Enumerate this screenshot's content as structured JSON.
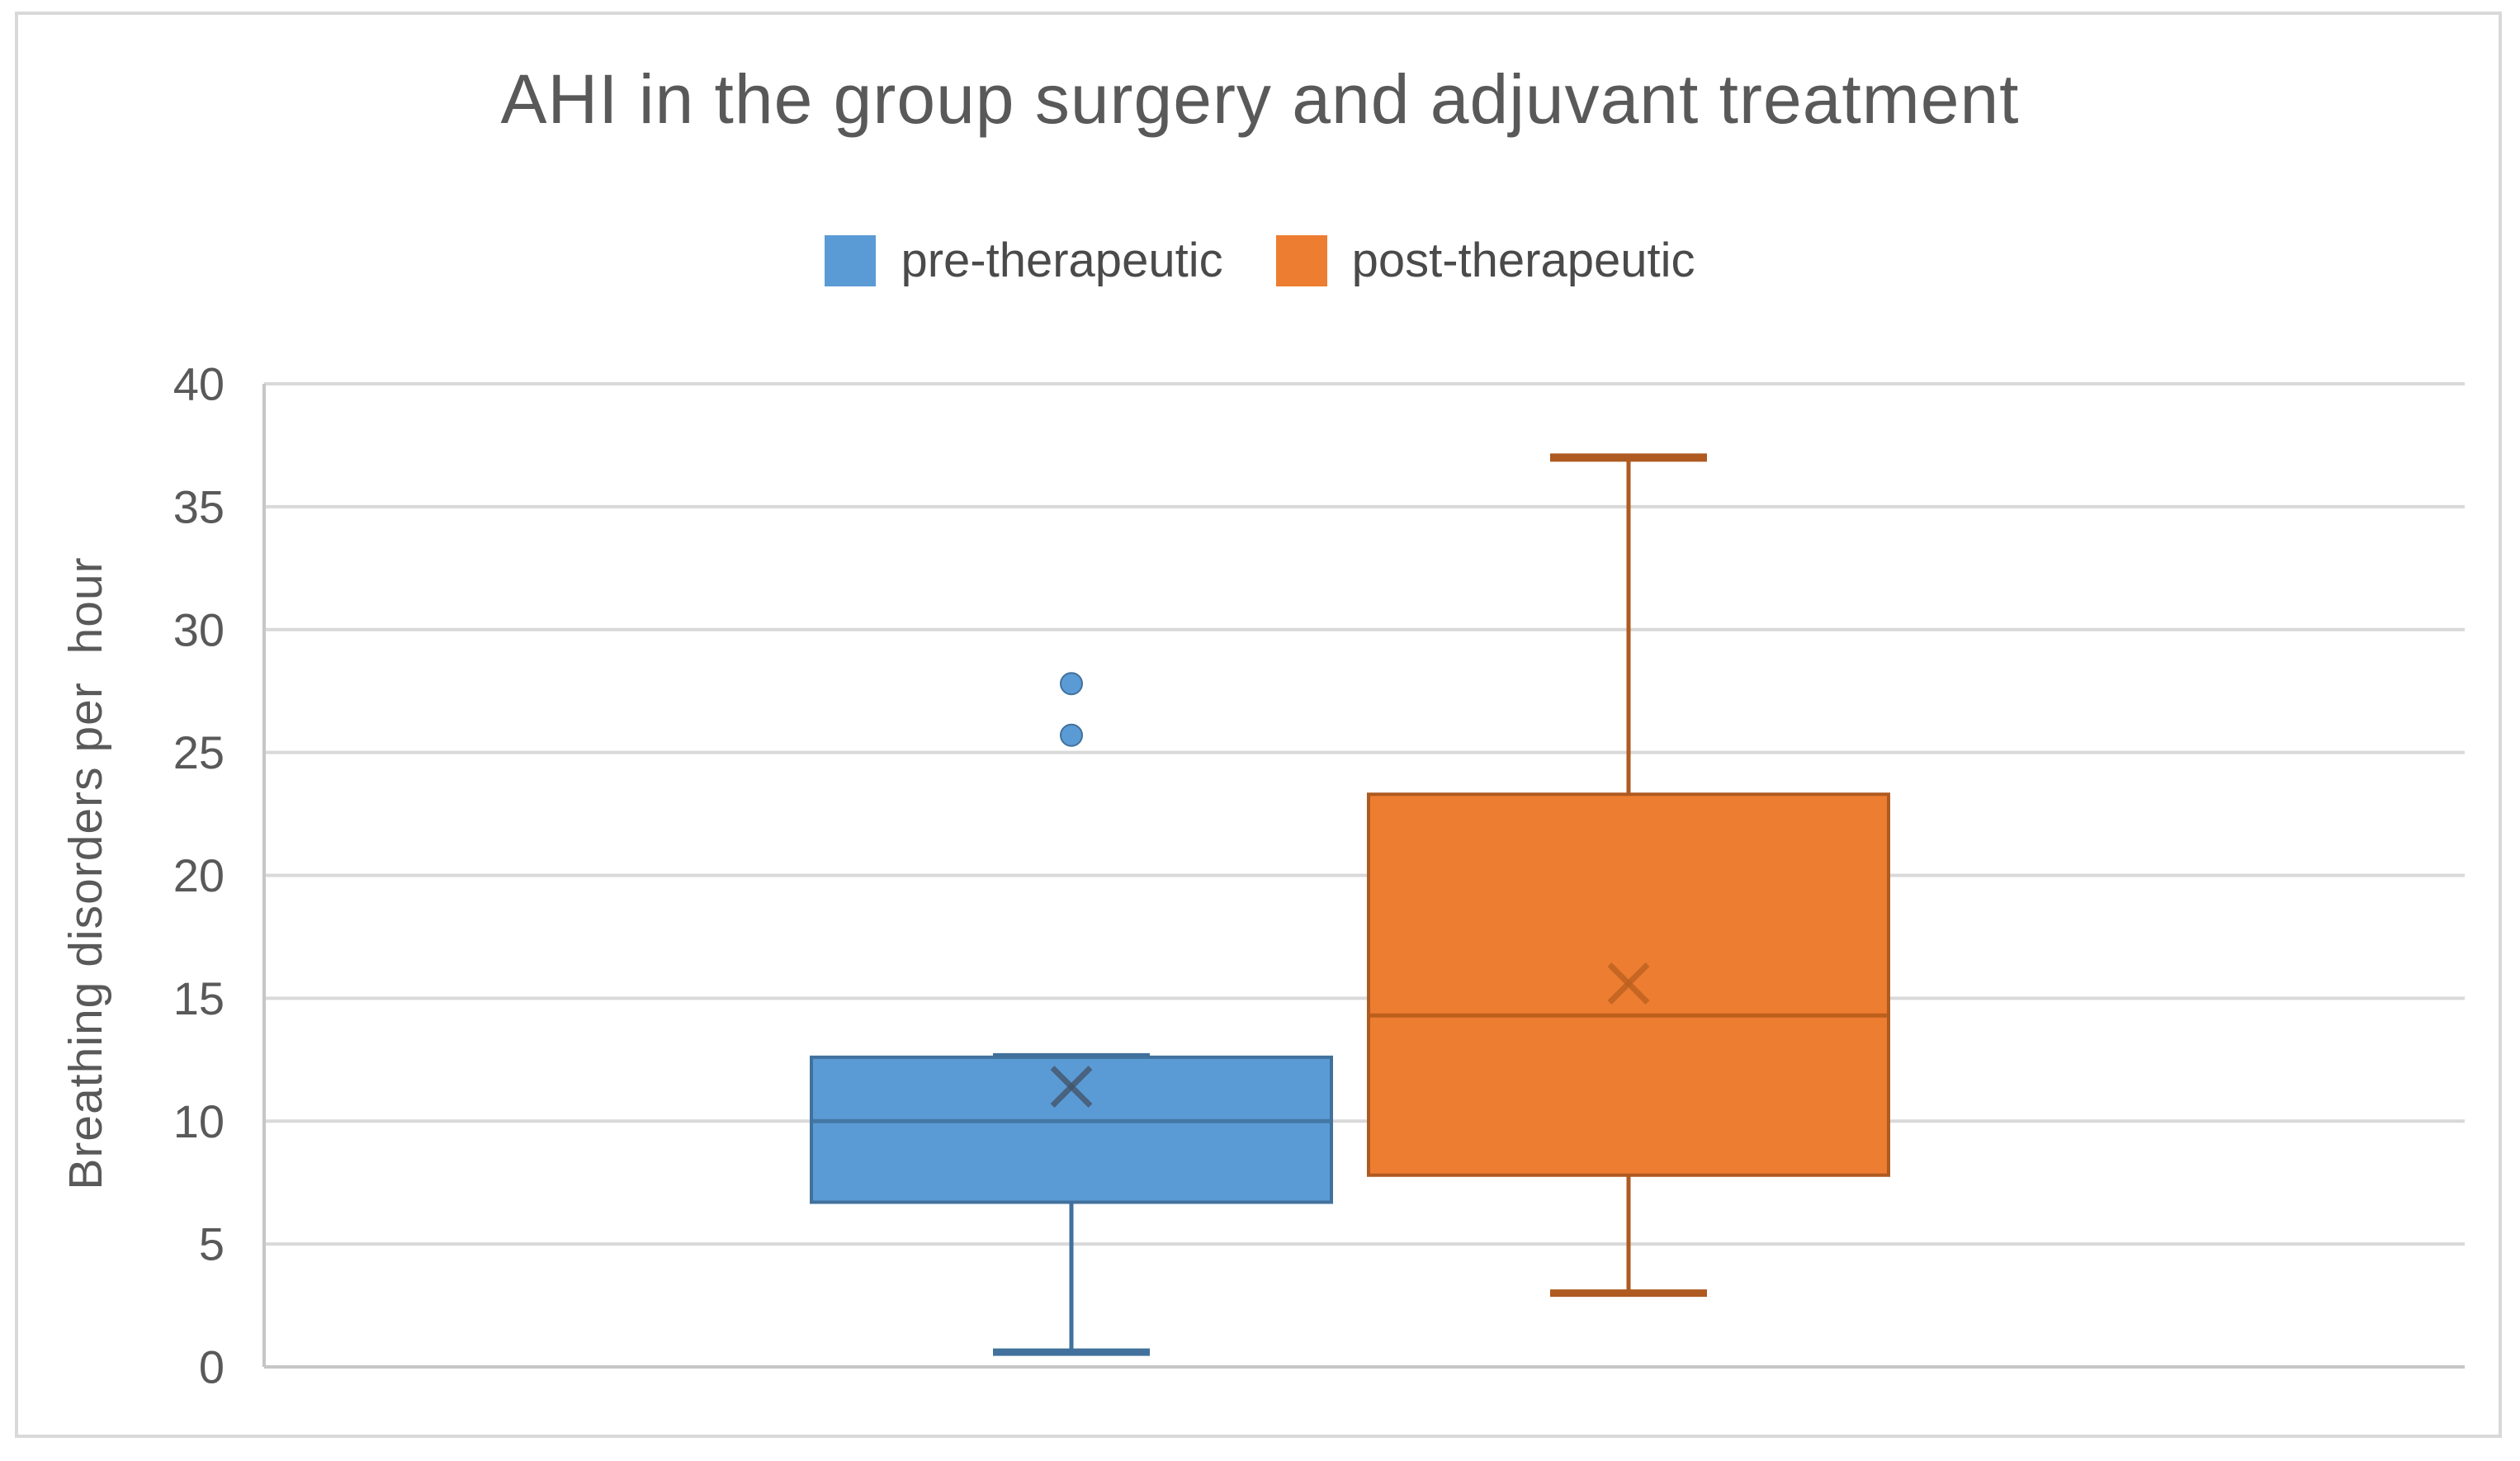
{
  "figure": {
    "background": "#FFFFFF",
    "frame_border_color": "#D9D9D9"
  },
  "chart_data": {
    "type": "boxplot",
    "title": "AHI in the group surgery and adjuvant treatment",
    "ylabel": "Breathing disorders per  hour",
    "xlabel": "",
    "ylim": [
      0,
      40
    ],
    "yticks": [
      0,
      5,
      10,
      15,
      20,
      25,
      30,
      35,
      40
    ],
    "grid": true,
    "legend_position": "top-center",
    "colors": {
      "gridline": "#D9D9D9",
      "axis_line": "#C6C6C6",
      "tick_text": "#595959",
      "title_text": "#595959"
    },
    "series": [
      {
        "name": "pre-therapeutic",
        "fill": "#5B9BD5",
        "edge": "#41719C",
        "median_color": "#41719C",
        "mean_color": "#44546A",
        "min": 0.6,
        "q1": 6.7,
        "median": 10,
        "q3": 12.6,
        "max": 12.6,
        "mean": 11.4,
        "outliers": [
          25.7,
          27.8
        ]
      },
      {
        "name": "post-therapeutic",
        "fill": "#ED7D31",
        "edge": "#AE5A21",
        "median_color": "#B55A19",
        "mean_color": "#BC6120",
        "min": 3,
        "q1": 7.8,
        "median": 14.3,
        "q3": 23.3,
        "max": 37,
        "mean": 15.6,
        "outliers": []
      }
    ]
  }
}
